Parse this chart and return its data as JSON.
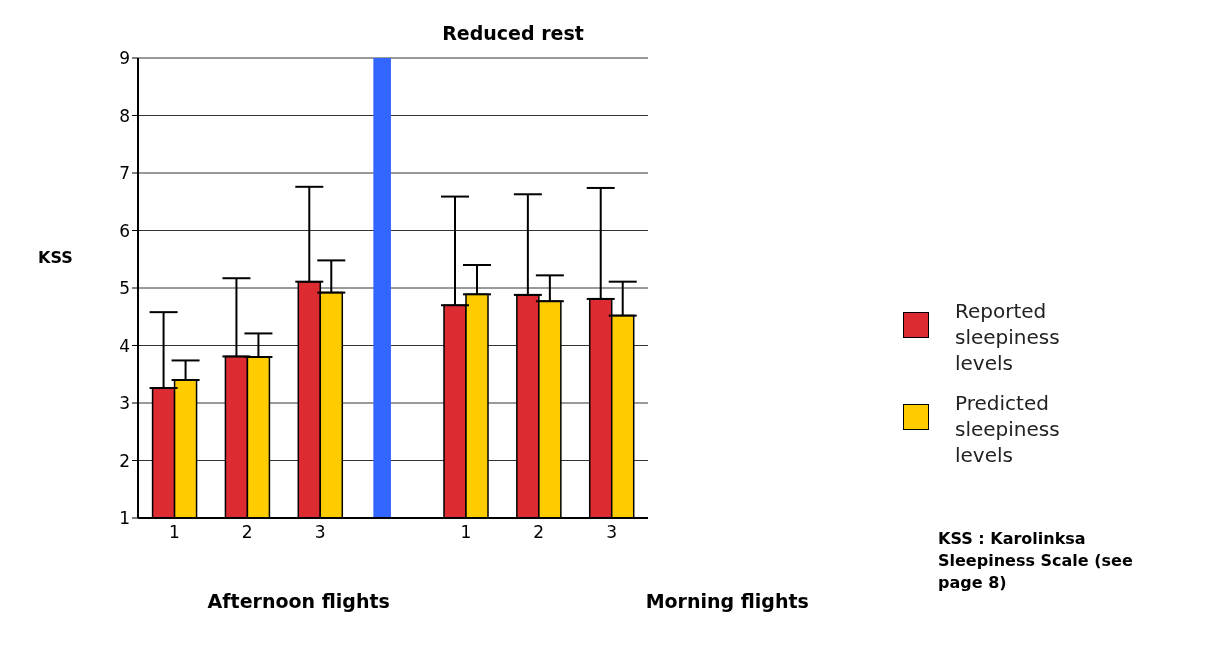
{
  "chart_data": {
    "type": "bar",
    "ylabel": "KSS",
    "categories": [
      "1",
      "2",
      "3",
      null,
      "1",
      "2",
      "3"
    ],
    "series": [
      {
        "name": "Reported sleepiness levels",
        "color": "#dc2c32",
        "values": [
          3.26,
          3.81,
          5.11,
          null,
          4.7,
          4.88,
          4.81
        ],
        "errors": [
          [
            3.26,
            4.58
          ],
          [
            3.81,
            5.17
          ],
          [
            5.11,
            6.76
          ],
          null,
          [
            4.7,
            6.59
          ],
          [
            4.88,
            6.63
          ],
          [
            4.81,
            6.74
          ]
        ]
      },
      {
        "name": "Predicted sleepiness levels",
        "color": "#ffcc00",
        "values": [
          3.4,
          3.8,
          4.92,
          null,
          4.89,
          4.77,
          4.52
        ],
        "errors": [
          [
            3.4,
            3.74
          ],
          [
            3.8,
            4.21
          ],
          [
            4.92,
            5.48
          ],
          null,
          [
            4.89,
            5.4
          ],
          [
            4.77,
            5.22
          ],
          [
            4.52,
            5.11
          ]
        ]
      },
      {
        "color": "#3366ff",
        "values": [
          null,
          null,
          null,
          9,
          null,
          null,
          null
        ]
      }
    ],
    "ylim": [
      1,
      9
    ],
    "yticks": [
      1,
      2,
      3,
      4,
      5,
      6,
      7,
      8,
      9
    ],
    "grid": "y",
    "legend": "right",
    "annotations": [
      "Reduced rest",
      "Afternoon flights",
      "Morning flights",
      "KSS : Karolinksa Sleepiness Scale (see page 8)"
    ]
  }
}
